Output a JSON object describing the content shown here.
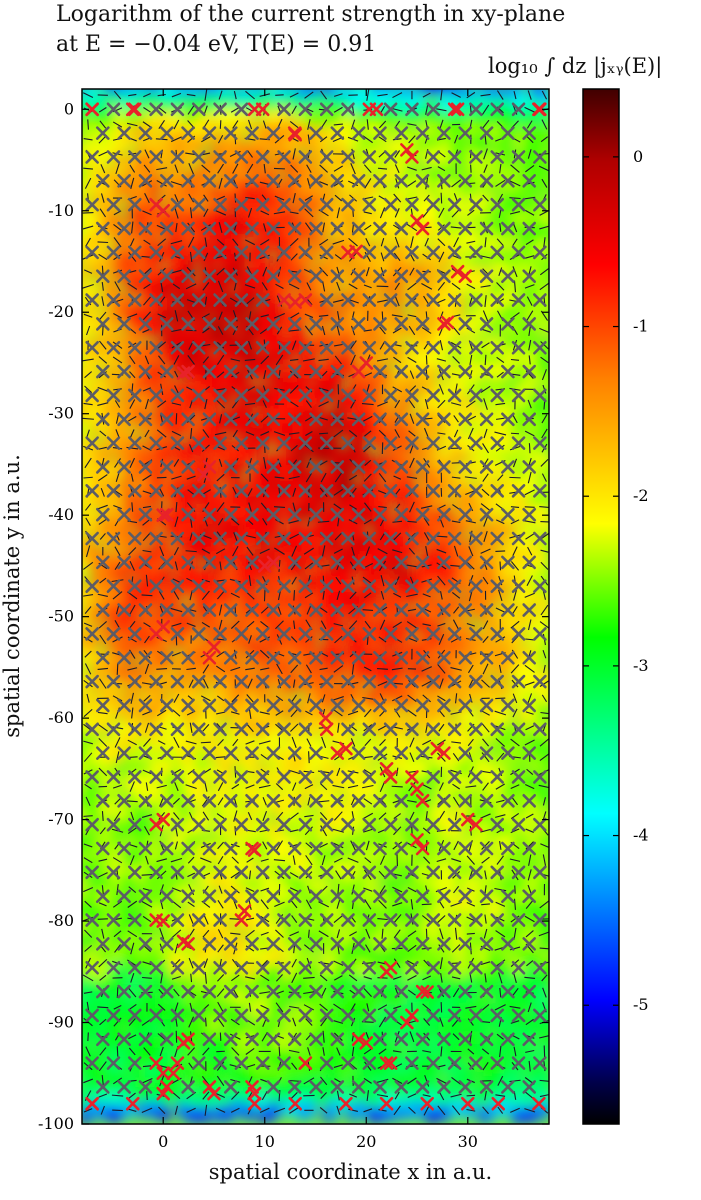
{
  "chart_data": {
    "type": "heatmap",
    "title_line1": "Logarithm of the current strength in xy-plane",
    "title_line2": "at E = −0.04 eV, T(E) = 0.91",
    "xlabel": "spatial coordinate x in a.u.",
    "ylabel": "spatial coordinate y in a.u.",
    "colorbar_label": "log₁₀ ∫ dz |jₓᵧ(E)|",
    "x_ticks": [
      0,
      10,
      20,
      30
    ],
    "y_ticks": [
      0,
      -10,
      -20,
      -30,
      -40,
      -50,
      -60,
      -70,
      -80,
      -90,
      -100
    ],
    "colorbar_ticks": [
      0,
      -1,
      -2,
      -3,
      -4,
      -5
    ],
    "xlim": [
      -8,
      38
    ],
    "ylim": [
      -100,
      2
    ],
    "clim": [
      -5.7,
      0.4
    ],
    "colormap": "jet",
    "colors": {
      "max": "#400000",
      "high": "#ff0000",
      "mid": "#ffff00",
      "low": "#00ffff",
      "min": "#000000"
    },
    "overlay": "gray and red x-markers at atom sites, black line segments showing local current direction"
  }
}
